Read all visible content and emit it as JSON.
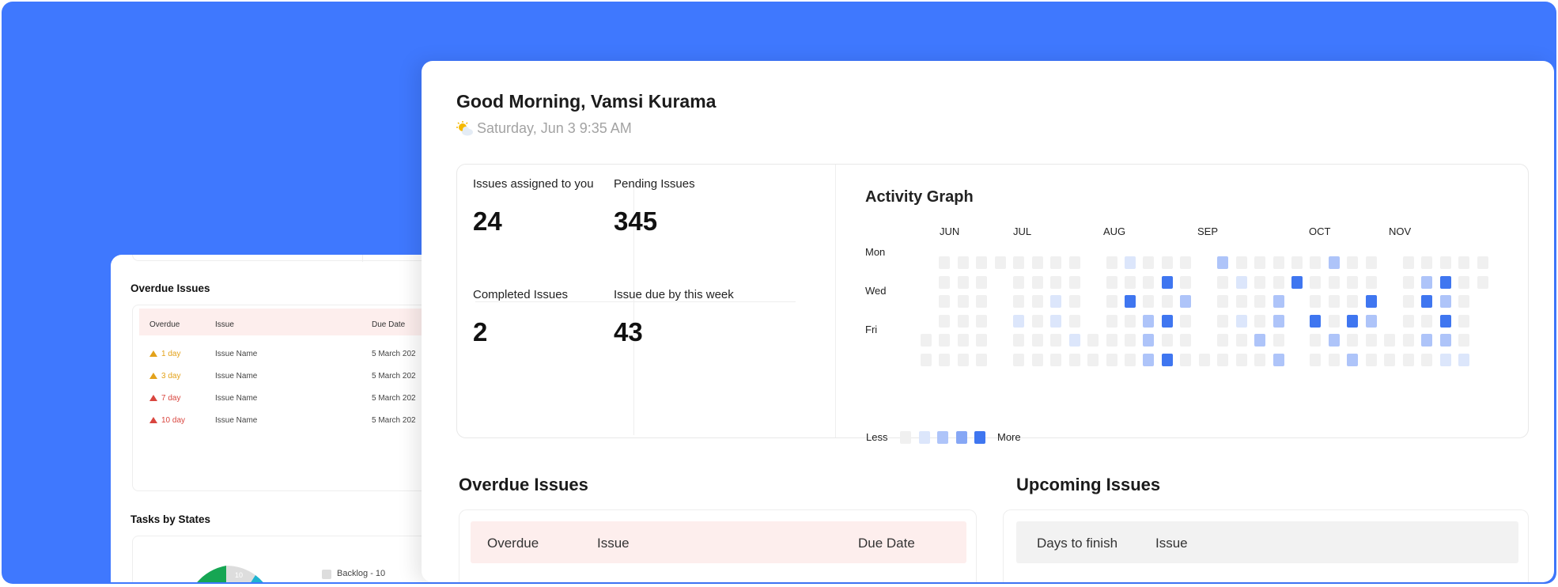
{
  "colors": {
    "background": "#3f78fe",
    "accent": "#3f76f0",
    "overdue_header": "#fdeeed",
    "upcoming_header": "#f2f2f2",
    "warning": "#e3a21a",
    "danger": "#d9463f"
  },
  "back_panel": {
    "overdue": {
      "title": "Overdue Issues",
      "headers": [
        "Overdue",
        "Issue",
        "Due Date"
      ],
      "rows": [
        {
          "overdue": "1 day",
          "severity": "warning",
          "issue": "Issue Name",
          "due": "5 March 202"
        },
        {
          "overdue": "3 day",
          "severity": "warning",
          "issue": "Issue Name",
          "due": "5 March 202"
        },
        {
          "overdue": "7 day",
          "severity": "danger",
          "issue": "Issue Name",
          "due": "5 March 202"
        },
        {
          "overdue": "10 day",
          "severity": "danger",
          "issue": "Issue Name",
          "due": "5 March 202"
        }
      ]
    },
    "tasks": {
      "title": "Tasks by States",
      "pie_label": "10",
      "legend": [
        {
          "label": "Backlog - 10",
          "color": "#dddddd"
        }
      ]
    }
  },
  "main": {
    "greeting": "Good Morning, Vamsi Kurama",
    "weather_icon": "sun-behind-cloud",
    "date": "Saturday, Jun 3  9:35 AM",
    "stats": [
      {
        "label": "Issues assigned to you",
        "value": "24"
      },
      {
        "label": "Pending Issues",
        "value": "345"
      },
      {
        "label": "Completed Issues",
        "value": "2"
      },
      {
        "label": "Issue due by this week",
        "value": "43"
      }
    ],
    "activity": {
      "title": "Activity Graph",
      "months": [
        "JUN",
        "JUL",
        "AUG",
        "SEP",
        "OCT",
        "NOV"
      ],
      "days": [
        "Mon",
        "Wed",
        "Fri"
      ],
      "legend_less": "Less",
      "legend_more": "More",
      "level_colors": [
        "#f0f0f0",
        "#dce6fb",
        "#aec4f9",
        "#86a7f5",
        "#3f76f0"
      ],
      "grid": [
        [
          0,
          1,
          1,
          1,
          1,
          1,
          1,
          1,
          1,
          0,
          1,
          2,
          1,
          1,
          1,
          0,
          3,
          1,
          1,
          1,
          1,
          1,
          3,
          1,
          1,
          0,
          1,
          1,
          1,
          1,
          1
        ],
        [
          0,
          1,
          1,
          1,
          0,
          1,
          1,
          1,
          1,
          0,
          1,
          1,
          1,
          5,
          1,
          0,
          1,
          2,
          1,
          1,
          5,
          1,
          1,
          1,
          1,
          0,
          1,
          3,
          5,
          1,
          1
        ],
        [
          0,
          1,
          1,
          1,
          0,
          1,
          1,
          2,
          1,
          0,
          1,
          5,
          1,
          1,
          3,
          0,
          1,
          1,
          1,
          3,
          0,
          1,
          1,
          1,
          5,
          0,
          1,
          5,
          3,
          1,
          0
        ],
        [
          0,
          1,
          1,
          1,
          0,
          2,
          1,
          2,
          1,
          0,
          1,
          1,
          3,
          5,
          1,
          0,
          1,
          2,
          1,
          3,
          0,
          5,
          1,
          5,
          3,
          0,
          1,
          1,
          5,
          1,
          0
        ],
        [
          1,
          1,
          1,
          1,
          0,
          1,
          1,
          1,
          2,
          1,
          1,
          1,
          3,
          1,
          1,
          0,
          1,
          1,
          3,
          1,
          0,
          1,
          3,
          1,
          1,
          1,
          1,
          3,
          3,
          1,
          0
        ],
        [
          1,
          1,
          1,
          1,
          0,
          1,
          1,
          1,
          1,
          1,
          1,
          1,
          3,
          5,
          1,
          1,
          1,
          1,
          1,
          3,
          0,
          1,
          1,
          3,
          1,
          1,
          1,
          1,
          2,
          2,
          0
        ]
      ]
    },
    "overdue": {
      "title": "Overdue Issues",
      "headers": [
        "Overdue",
        "Issue",
        "Due Date"
      ]
    },
    "upcoming": {
      "title": "Upcoming Issues",
      "headers": [
        "Days to finish",
        "Issue"
      ]
    }
  }
}
